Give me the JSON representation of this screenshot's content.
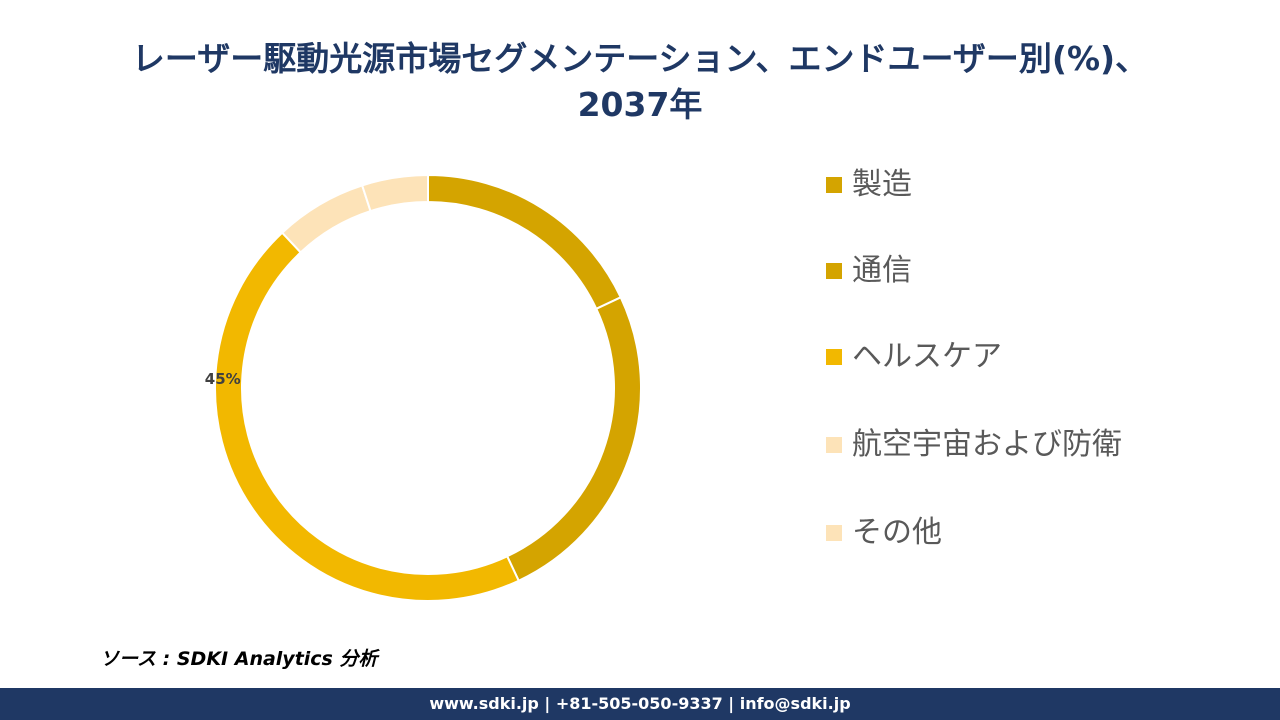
{
  "title": {
    "line1": "レーザー駆動光源市場セグメンテーション、エンドユーザー別(%)、",
    "line2": "2037年"
  },
  "chart_data": {
    "type": "pie",
    "categories": [
      "製造",
      "通信",
      "ヘルスケア",
      "航空宇宙および防衛",
      "その他"
    ],
    "values": [
      18,
      25,
      45,
      7,
      5
    ],
    "colors": [
      "#d4a400",
      "#d4a400",
      "#f2b800",
      "#fde3b8",
      "#fde3b8"
    ],
    "data_labels": [
      "",
      "",
      "45%",
      "",
      ""
    ],
    "legend_placement": "right"
  },
  "source": "ソース : SDKI Analytics 分析",
  "footer": "www.sdki.jp | +81-505-050-9337 | info@sdki.jp"
}
